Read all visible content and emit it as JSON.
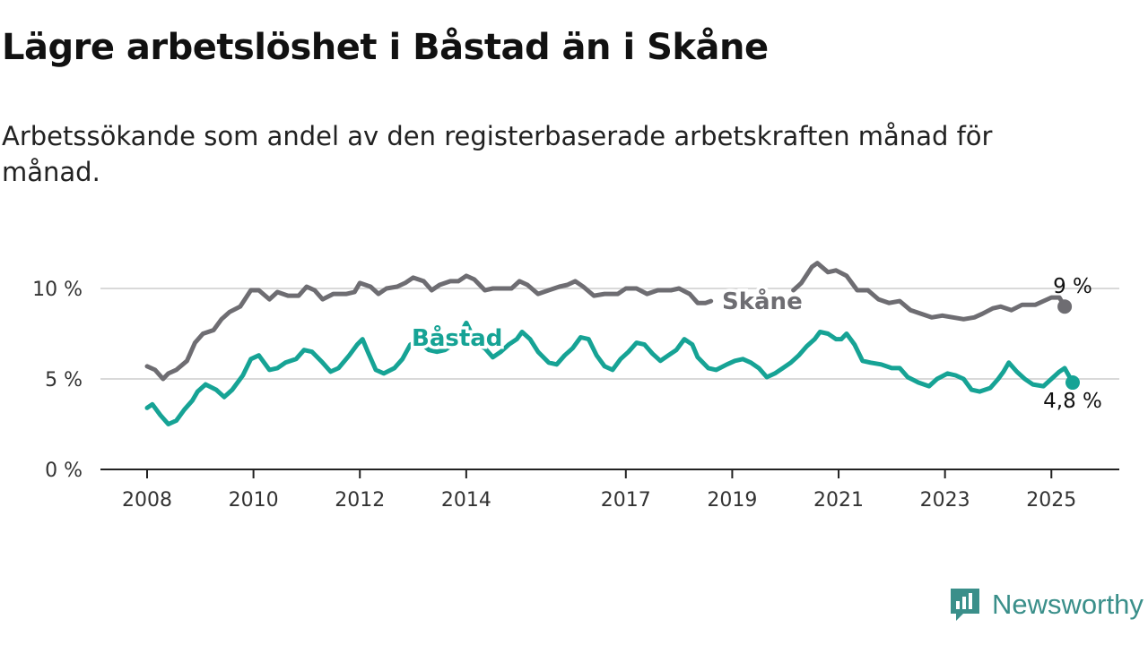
{
  "chart_data": {
    "type": "line",
    "title": "Lägre arbetslöshet i Båstad än i Skåne",
    "subtitle": "Arbetssökande som andel av den registerbaserade arbetskraften månad för månad.",
    "xlabel": "",
    "ylabel": "",
    "x_range": [
      2008.0,
      2025.4
    ],
    "ylim": [
      0,
      12.5
    ],
    "y_ticks": [
      {
        "value": 0,
        "label": "0 %"
      },
      {
        "value": 5,
        "label": "5 %"
      },
      {
        "value": 10,
        "label": "10 %"
      }
    ],
    "x_ticks": [
      {
        "value": 2008,
        "label": "2008"
      },
      {
        "value": 2010,
        "label": "2010"
      },
      {
        "value": 2012,
        "label": "2012"
      },
      {
        "value": 2014,
        "label": "2014"
      },
      {
        "value": 2017,
        "label": "2017"
      },
      {
        "value": 2019,
        "label": "2019"
      },
      {
        "value": 2021,
        "label": "2021"
      },
      {
        "value": 2023,
        "label": "2023"
      },
      {
        "value": 2025,
        "label": "2025"
      }
    ],
    "grid": "horizontal",
    "legend": "inline labels",
    "series": [
      {
        "name": "Skåne",
        "color": "#6e6d72",
        "end_label": "9 %",
        "points": [
          [
            2008.0,
            5.7
          ],
          [
            2008.15,
            5.5
          ],
          [
            2008.3,
            5.0
          ],
          [
            2008.4,
            5.3
          ],
          [
            2008.55,
            5.5
          ],
          [
            2008.75,
            6.0
          ],
          [
            2008.9,
            7.0
          ],
          [
            2009.05,
            7.5
          ],
          [
            2009.25,
            7.7
          ],
          [
            2009.4,
            8.3
          ],
          [
            2009.55,
            8.7
          ],
          [
            2009.75,
            9.0
          ],
          [
            2009.95,
            9.9
          ],
          [
            2010.1,
            9.9
          ],
          [
            2010.3,
            9.4
          ],
          [
            2010.45,
            9.8
          ],
          [
            2010.65,
            9.6
          ],
          [
            2010.85,
            9.6
          ],
          [
            2011.0,
            10.1
          ],
          [
            2011.15,
            9.9
          ],
          [
            2011.3,
            9.4
          ],
          [
            2011.5,
            9.7
          ],
          [
            2011.75,
            9.7
          ],
          [
            2011.9,
            9.8
          ],
          [
            2012.0,
            10.3
          ],
          [
            2012.2,
            10.1
          ],
          [
            2012.35,
            9.7
          ],
          [
            2012.5,
            10.0
          ],
          [
            2012.7,
            10.1
          ],
          [
            2012.85,
            10.3
          ],
          [
            2013.0,
            10.6
          ],
          [
            2013.2,
            10.4
          ],
          [
            2013.35,
            9.9
          ],
          [
            2013.5,
            10.2
          ],
          [
            2013.7,
            10.4
          ],
          [
            2013.85,
            10.4
          ],
          [
            2014.0,
            10.7
          ],
          [
            2014.15,
            10.5
          ],
          [
            2014.35,
            9.9
          ],
          [
            2014.5,
            10.0
          ],
          [
            2014.65,
            10.0
          ],
          [
            2014.85,
            10.0
          ],
          [
            2015.0,
            10.4
          ],
          [
            2015.15,
            10.2
          ],
          [
            2015.35,
            9.7
          ],
          [
            2015.55,
            9.9
          ],
          [
            2015.75,
            10.1
          ],
          [
            2015.9,
            10.2
          ],
          [
            2016.05,
            10.4
          ],
          [
            2016.2,
            10.1
          ],
          [
            2016.4,
            9.6
          ],
          [
            2016.6,
            9.7
          ],
          [
            2016.85,
            9.7
          ],
          [
            2017.0,
            10.0
          ],
          [
            2017.2,
            10.0
          ],
          [
            2017.4,
            9.7
          ],
          [
            2017.6,
            9.9
          ],
          [
            2017.85,
            9.9
          ],
          [
            2018.0,
            10.0
          ],
          [
            2018.2,
            9.7
          ],
          [
            2018.35,
            9.2
          ],
          [
            2018.5,
            9.2
          ],
          [
            2018.6,
            9.3
          ]
        ],
        "segments_after_label": [
          [
            2020.15,
            9.9
          ],
          [
            2020.3,
            10.3
          ],
          [
            2020.5,
            11.2
          ],
          [
            2020.6,
            11.4
          ],
          [
            2020.8,
            10.9
          ],
          [
            2020.95,
            11.0
          ],
          [
            2021.15,
            10.7
          ],
          [
            2021.35,
            9.9
          ],
          [
            2021.55,
            9.9
          ],
          [
            2021.75,
            9.4
          ],
          [
            2021.95,
            9.2
          ],
          [
            2022.15,
            9.3
          ],
          [
            2022.35,
            8.8
          ],
          [
            2022.55,
            8.6
          ],
          [
            2022.75,
            8.4
          ],
          [
            2022.95,
            8.5
          ],
          [
            2023.15,
            8.4
          ],
          [
            2023.35,
            8.3
          ],
          [
            2023.55,
            8.4
          ],
          [
            2023.7,
            8.6
          ],
          [
            2023.9,
            8.9
          ],
          [
            2024.05,
            9.0
          ],
          [
            2024.25,
            8.8
          ],
          [
            2024.45,
            9.1
          ],
          [
            2024.7,
            9.1
          ],
          [
            2024.85,
            9.3
          ],
          [
            2025.0,
            9.5
          ],
          [
            2025.15,
            9.5
          ],
          [
            2025.25,
            9.0
          ]
        ]
      },
      {
        "name": "Båstad",
        "color": "#16a395",
        "end_label": "4,8 %",
        "points": [
          [
            2008.0,
            3.4
          ],
          [
            2008.1,
            3.6
          ],
          [
            2008.25,
            3.0
          ],
          [
            2008.4,
            2.5
          ],
          [
            2008.55,
            2.7
          ],
          [
            2008.7,
            3.3
          ],
          [
            2008.85,
            3.8
          ],
          [
            2008.95,
            4.3
          ],
          [
            2009.1,
            4.7
          ],
          [
            2009.3,
            4.4
          ],
          [
            2009.45,
            4.0
          ],
          [
            2009.6,
            4.4
          ],
          [
            2009.8,
            5.2
          ],
          [
            2009.95,
            6.1
          ],
          [
            2010.1,
            6.3
          ],
          [
            2010.3,
            5.5
          ],
          [
            2010.45,
            5.6
          ],
          [
            2010.6,
            5.9
          ],
          [
            2010.8,
            6.1
          ],
          [
            2010.95,
            6.6
          ],
          [
            2011.1,
            6.5
          ],
          [
            2011.3,
            5.9
          ],
          [
            2011.45,
            5.4
          ],
          [
            2011.6,
            5.6
          ],
          [
            2011.8,
            6.3
          ],
          [
            2011.95,
            6.9
          ],
          [
            2012.05,
            7.2
          ],
          [
            2012.15,
            6.5
          ],
          [
            2012.3,
            5.5
          ],
          [
            2012.45,
            5.3
          ],
          [
            2012.65,
            5.6
          ],
          [
            2012.8,
            6.1
          ],
          [
            2012.95,
            6.9
          ],
          [
            2013.1,
            7.1
          ],
          [
            2013.3,
            6.6
          ],
          [
            2013.45,
            6.5
          ],
          [
            2013.6,
            6.6
          ],
          [
            2013.8,
            7.0
          ],
          [
            2014.0,
            8.1
          ],
          [
            2014.2,
            6.9
          ],
          [
            2014.35,
            6.7
          ],
          [
            2014.5,
            6.2
          ],
          [
            2014.65,
            6.5
          ],
          [
            2014.8,
            6.9
          ],
          [
            2014.95,
            7.2
          ],
          [
            2015.05,
            7.6
          ],
          [
            2015.2,
            7.2
          ],
          [
            2015.35,
            6.5
          ],
          [
            2015.55,
            5.9
          ],
          [
            2015.7,
            5.8
          ],
          [
            2015.85,
            6.3
          ],
          [
            2016.0,
            6.7
          ],
          [
            2016.15,
            7.3
          ],
          [
            2016.3,
            7.2
          ],
          [
            2016.45,
            6.3
          ],
          [
            2016.6,
            5.7
          ],
          [
            2016.75,
            5.5
          ],
          [
            2016.9,
            6.1
          ],
          [
            2017.05,
            6.5
          ],
          [
            2017.2,
            7.0
          ],
          [
            2017.35,
            6.9
          ],
          [
            2017.5,
            6.4
          ],
          [
            2017.65,
            6.0
          ],
          [
            2017.8,
            6.3
          ],
          [
            2017.95,
            6.6
          ],
          [
            2018.1,
            7.2
          ],
          [
            2018.25,
            6.9
          ],
          [
            2018.35,
            6.2
          ],
          [
            2018.55,
            5.6
          ],
          [
            2018.7,
            5.5
          ],
          [
            2018.9,
            5.8
          ],
          [
            2019.05,
            6.0
          ],
          [
            2019.2,
            6.1
          ],
          [
            2019.35,
            5.9
          ],
          [
            2019.5,
            5.6
          ],
          [
            2019.65,
            5.1
          ],
          [
            2019.8,
            5.3
          ],
          [
            2019.95,
            5.6
          ],
          [
            2020.1,
            5.9
          ],
          [
            2020.25,
            6.3
          ],
          [
            2020.4,
            6.8
          ],
          [
            2020.55,
            7.2
          ],
          [
            2020.65,
            7.6
          ],
          [
            2020.8,
            7.5
          ],
          [
            2020.95,
            7.2
          ],
          [
            2021.05,
            7.2
          ],
          [
            2021.15,
            7.5
          ],
          [
            2021.3,
            6.9
          ],
          [
            2021.45,
            6.0
          ],
          [
            2021.6,
            5.9
          ],
          [
            2021.8,
            5.8
          ],
          [
            2022.0,
            5.6
          ],
          [
            2022.15,
            5.6
          ],
          [
            2022.3,
            5.1
          ],
          [
            2022.5,
            4.8
          ],
          [
            2022.7,
            4.6
          ],
          [
            2022.85,
            5.0
          ],
          [
            2023.05,
            5.3
          ],
          [
            2023.2,
            5.2
          ],
          [
            2023.35,
            5.0
          ],
          [
            2023.5,
            4.4
          ],
          [
            2023.65,
            4.3
          ],
          [
            2023.85,
            4.5
          ],
          [
            2024.0,
            5.0
          ],
          [
            2024.1,
            5.4
          ],
          [
            2024.2,
            5.9
          ],
          [
            2024.35,
            5.4
          ],
          [
            2024.5,
            5.0
          ],
          [
            2024.65,
            4.7
          ],
          [
            2024.85,
            4.6
          ],
          [
            2025.0,
            5.0
          ],
          [
            2025.15,
            5.4
          ],
          [
            2025.25,
            5.6
          ],
          [
            2025.4,
            4.8
          ]
        ]
      }
    ]
  },
  "brand": {
    "name": "Newsworthy",
    "logo_icon": "newsworthy-chart-bubble-icon",
    "color": "#3a8f8a"
  }
}
